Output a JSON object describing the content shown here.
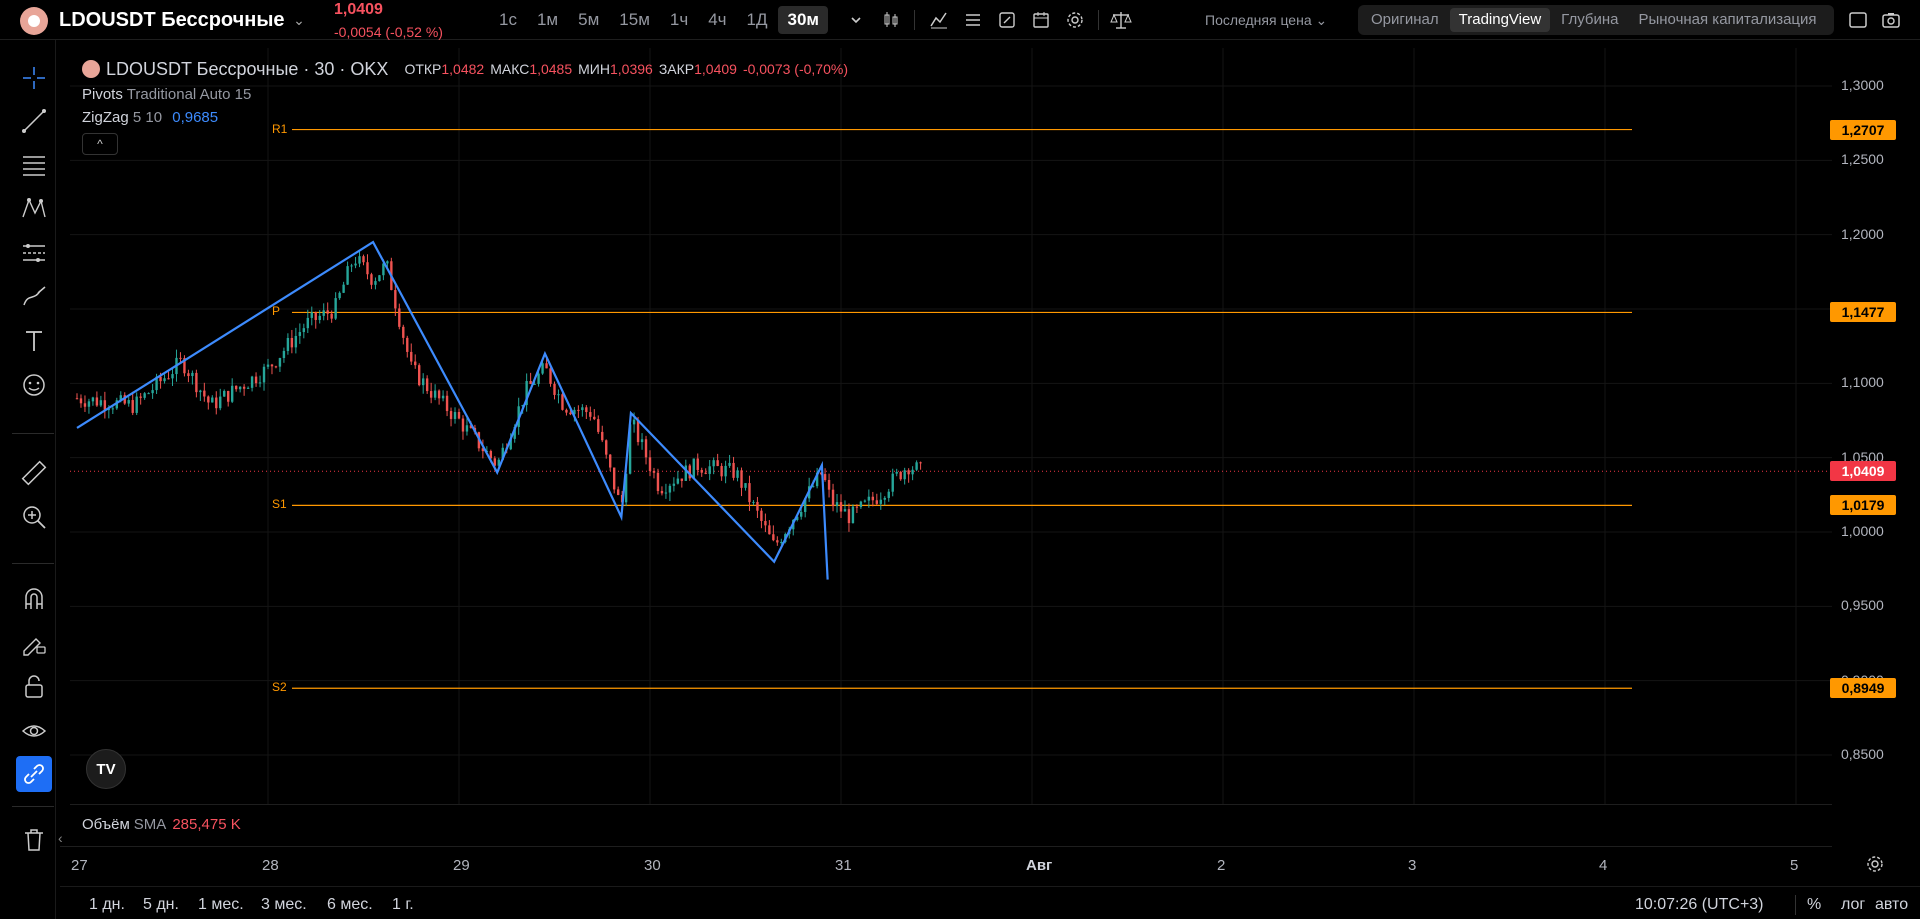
{
  "header": {
    "symbol": "LDOUSDT Бессрочные",
    "last_price": "1,0409",
    "change": "-0,0054 (-0,52 %)",
    "intervals": [
      "1с",
      "1м",
      "5м",
      "15м",
      "1ч",
      "4ч",
      "1Д",
      "30м"
    ],
    "active_interval": "30м",
    "price_type": "Последняя цена",
    "views": [
      "Оригинал",
      "TradingView",
      "Глубина",
      "Рыночная капитализация"
    ],
    "active_view": "TradingView"
  },
  "legend": {
    "title": "LDOUSDT Бессрочные · 30 · OKX",
    "ohlc": [
      {
        "k": "ОТКР",
        "v": "1,0482"
      },
      {
        "k": "МАКС",
        "v": "1,0485"
      },
      {
        "k": "МИН",
        "v": "1,0396"
      },
      {
        "k": "ЗАКР",
        "v": "1,0409"
      }
    ],
    "close_change": "-0,0073 (-0,70%)",
    "pivots_name": "Pivots",
    "pivots_params": "Traditional Auto 15",
    "zigzag_name": "ZigZag",
    "zigzag_params": "5 10",
    "zigzag_value": "0,9685"
  },
  "colors": {
    "up": "#26a69a",
    "down": "#ef5350",
    "zigzag": "#3d8bfd",
    "pivot": "#ff9800",
    "badge_red": "#f23645"
  },
  "price_axis": {
    "labels": [
      "1,3000",
      "1,2500",
      "1,2000",
      "1,1500",
      "1,1000",
      "1,0500",
      "1,0000",
      "0,9500",
      "0,9000",
      "0,8500"
    ],
    "min": 0.83,
    "max": 1.305
  },
  "pivots": [
    {
      "name": "R1",
      "value": 1.2707,
      "label": "1,2707"
    },
    {
      "name": "P",
      "value": 1.1477,
      "label": "1,1477"
    },
    {
      "name": "S1",
      "value": 1.0179,
      "label": "1,0179"
    },
    {
      "name": "S2",
      "value": 0.8949,
      "label": "0,8949"
    }
  ],
  "last_price_badge": {
    "value": 1.0409,
    "label": "1,0409"
  },
  "time_axis": {
    "labels": [
      {
        "t": "27",
        "bold": false
      },
      {
        "t": "28",
        "bold": false
      },
      {
        "t": "29",
        "bold": false
      },
      {
        "t": "30",
        "bold": false
      },
      {
        "t": "31",
        "bold": false
      },
      {
        "t": "Авг",
        "bold": true
      },
      {
        "t": "2",
        "bold": false
      },
      {
        "t": "3",
        "bold": false
      },
      {
        "t": "4",
        "bold": false
      },
      {
        "t": "5",
        "bold": false
      }
    ]
  },
  "chart_data": {
    "type": "candlestick",
    "x_unit": "day of July",
    "zigzag": [
      {
        "x": 27.0,
        "y": 1.07
      },
      {
        "x": 28.55,
        "y": 1.195
      },
      {
        "x": 29.2,
        "y": 1.04
      },
      {
        "x": 29.45,
        "y": 1.12
      },
      {
        "x": 29.85,
        "y": 1.01
      },
      {
        "x": 29.9,
        "y": 1.08
      },
      {
        "x": 30.65,
        "y": 0.98
      },
      {
        "x": 30.9,
        "y": 1.045
      },
      {
        "x": 30.93,
        "y": 0.968
      }
    ],
    "price_path": [
      [
        27.0,
        1.09
      ],
      [
        27.3,
        1.085
      ],
      [
        27.55,
        1.115
      ],
      [
        27.7,
        1.085
      ],
      [
        28.0,
        1.11
      ],
      [
        28.2,
        1.14
      ],
      [
        28.35,
        1.15
      ],
      [
        28.45,
        1.185
      ],
      [
        28.55,
        1.17
      ],
      [
        28.62,
        1.18
      ],
      [
        28.75,
        1.11
      ],
      [
        28.85,
        1.095
      ],
      [
        29.0,
        1.075
      ],
      [
        29.2,
        1.045
      ],
      [
        29.35,
        1.095
      ],
      [
        29.45,
        1.11
      ],
      [
        29.55,
        1.085
      ],
      [
        29.7,
        1.08
      ],
      [
        29.85,
        1.015
      ],
      [
        29.9,
        1.075
      ],
      [
        30.05,
        1.03
      ],
      [
        30.25,
        1.045
      ],
      [
        30.45,
        1.04
      ],
      [
        30.65,
        0.99
      ],
      [
        30.8,
        1.02
      ],
      [
        30.9,
        1.04
      ],
      [
        30.95,
        1.02
      ],
      [
        31.05,
        1.01
      ],
      [
        31.2,
        1.025
      ],
      [
        31.35,
        1.045
      ],
      [
        31.42,
        1.041
      ]
    ]
  },
  "volume": {
    "label": "Объём",
    "ma": "SMA",
    "value": "285,475 K"
  },
  "bottombar": {
    "ranges": [
      "1 дн.",
      "5 дн.",
      "1 мес.",
      "3 мес.",
      "6 мес.",
      "1 г."
    ],
    "clock": "10:07:26 (UTC+3)",
    "percent": "%",
    "log": "лог",
    "auto": "авто"
  },
  "tv_logo": "TV"
}
